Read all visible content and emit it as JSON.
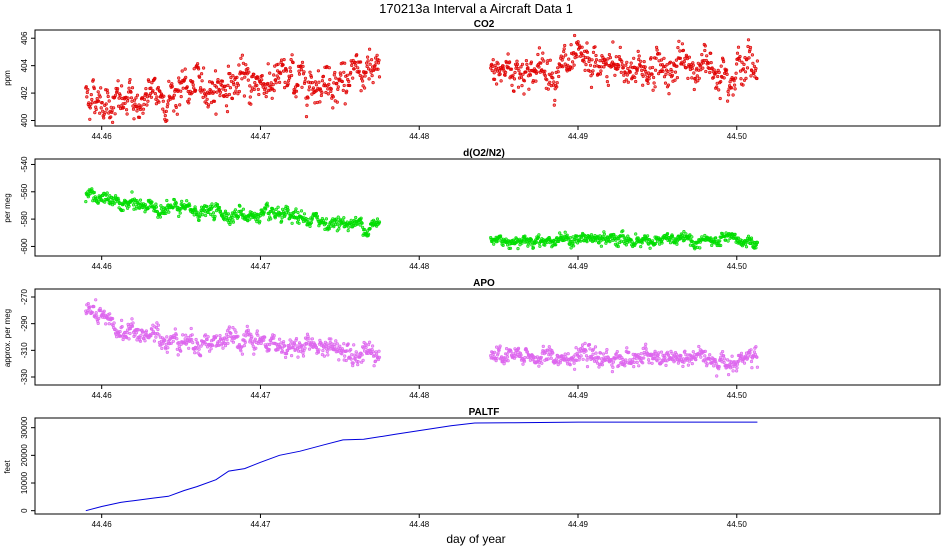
{
  "figure": {
    "title": "170213a   Interval a Aircraft Data 1",
    "xlabel": "day of year"
  },
  "chart_data": [
    {
      "type": "scatter",
      "title": "CO2",
      "ylabel": "ppm",
      "color": "#e00000",
      "xlim": [
        44.4558,
        44.5128
      ],
      "ylim": [
        399.6,
        406.6
      ],
      "xticks": [
        44.46,
        44.47,
        44.48,
        44.49,
        44.5
      ],
      "xtick_labels": [
        "44.46",
        "44.47",
        "44.48",
        "44.49",
        "44.50"
      ],
      "yticks": [
        400,
        402,
        404,
        406
      ],
      "ytick_labels": [
        "400",
        "402",
        "404",
        "406"
      ],
      "segments": [
        {
          "x_start": 44.459,
          "x_end": 44.4775,
          "trend": [
            [
              44.459,
              402.0
            ],
            [
              44.4615,
              401.1
            ],
            [
              44.465,
              402.2
            ],
            [
              44.47,
              402.9
            ],
            [
              44.4775,
              403.2
            ]
          ],
          "noise": 0.9
        },
        {
          "x_start": 44.4845,
          "x_end": 44.5013,
          "trend": [
            [
              44.4845,
              403.7
            ],
            [
              44.493,
              403.8
            ],
            [
              44.5013,
              404.0
            ]
          ],
          "noise": 0.9
        }
      ]
    },
    {
      "type": "scatter",
      "title": "d(O2/N2)",
      "ylabel": "per meg",
      "color": "#00dd00",
      "xlim": [
        44.4558,
        44.5128
      ],
      "ylim": [
        -607,
        -536
      ],
      "xticks": [
        44.46,
        44.47,
        44.48,
        44.49,
        44.5
      ],
      "xtick_labels": [
        "44.46",
        "44.47",
        "44.48",
        "44.49",
        "44.50"
      ],
      "yticks": [
        -600,
        -580,
        -560,
        -540
      ],
      "ytick_labels": [
        "-600",
        "-580",
        "-560",
        "-540"
      ],
      "segments": [
        {
          "x_start": 44.459,
          "x_end": 44.4775,
          "trend": [
            [
              44.459,
              -560
            ],
            [
              44.4605,
              -568
            ],
            [
              44.465,
              -573
            ],
            [
              44.47,
              -578
            ],
            [
              44.4775,
              -585
            ]
          ],
          "noise": 3.5
        },
        {
          "x_start": 44.4845,
          "x_end": 44.5013,
          "trend": [
            [
              44.4845,
              -595
            ],
            [
              44.493,
              -595
            ],
            [
              44.5013,
              -597
            ]
          ],
          "noise": 3.0
        }
      ]
    },
    {
      "type": "scatter",
      "title": "APO",
      "ylabel": "approx. per meg",
      "color": "#dd66ee",
      "xlim": [
        44.4558,
        44.5128
      ],
      "ylim": [
        -336,
        -264
      ],
      "xticks": [
        44.46,
        44.47,
        44.48,
        44.49,
        44.5
      ],
      "xtick_labels": [
        "44.46",
        "44.47",
        "44.48",
        "44.49",
        "44.50"
      ],
      "yticks": [
        -270,
        -290,
        -310,
        -330
      ],
      "ytick_labels": [
        "-270",
        "-290",
        "-310",
        "-330"
      ],
      "segments": [
        {
          "x_start": 44.459,
          "x_end": 44.4775,
          "trend": [
            [
              44.459,
              -280
            ],
            [
              44.461,
              -295
            ],
            [
              44.465,
              -302
            ],
            [
              44.47,
              -305
            ],
            [
              44.4775,
              -310
            ]
          ],
          "noise": 5.0
        },
        {
          "x_start": 44.4845,
          "x_end": 44.5013,
          "trend": [
            [
              44.4845,
              -315
            ],
            [
              44.493,
              -316
            ],
            [
              44.5013,
              -317
            ]
          ],
          "noise": 4.5
        }
      ]
    },
    {
      "type": "line",
      "title": "PALTF",
      "ylabel": "feet",
      "color": "#0000dd",
      "xlim": [
        44.4558,
        44.5128
      ],
      "ylim": [
        -1200,
        33500
      ],
      "xticks": [
        44.46,
        44.47,
        44.48,
        44.49,
        44.5
      ],
      "xtick_labels": [
        "44.46",
        "44.47",
        "44.48",
        "44.49",
        "44.50"
      ],
      "yticks": [
        0,
        10000,
        20000,
        30000
      ],
      "ytick_labels": [
        "0",
        "10000",
        "20000",
        "30000"
      ],
      "x": [
        44.459,
        44.46,
        44.4612,
        44.462,
        44.4633,
        44.4642,
        44.4652,
        44.466,
        44.4672,
        44.468,
        44.469,
        44.47,
        44.4712,
        44.4725,
        44.474,
        44.4752,
        44.4765,
        44.4785,
        44.4803,
        44.482,
        44.4835,
        44.486,
        44.49,
        44.495,
        44.5013
      ],
      "y": [
        0,
        1500,
        3000,
        3600,
        4600,
        5200,
        7300,
        8700,
        11200,
        14300,
        15200,
        17500,
        20000,
        21500,
        23800,
        25600,
        25800,
        27600,
        29200,
        30700,
        31700,
        31800,
        32000,
        32000,
        32000
      ]
    }
  ]
}
